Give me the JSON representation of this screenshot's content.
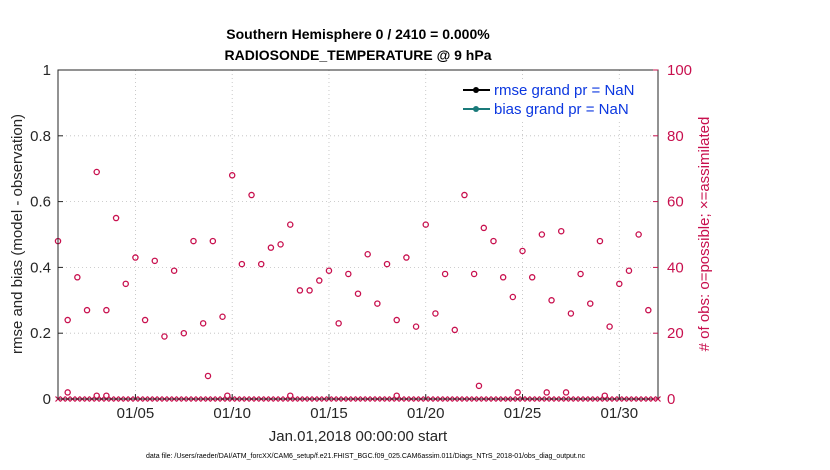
{
  "chart_data": {
    "type": "scatter",
    "title_line1": "Southern Hemisphere 0 / 2410 = 0.000%",
    "title_line2": "RADIOSONDE_TEMPERATURE @ 9 hPa",
    "ylabel_left": "rmse and bias (model - observation)",
    "ylabel_right": "# of obs: o=possible; ×=assimilated",
    "xlabel": "Jan.01,2018 00:00:00 start",
    "ylim_left": [
      0,
      1
    ],
    "ylim_right": [
      0,
      100
    ],
    "xlim": [
      1,
      32
    ],
    "left_ticks": [
      {
        "value": 0,
        "label": "0"
      },
      {
        "value": 0.2,
        "label": "0.2"
      },
      {
        "value": 0.4,
        "label": "0.4"
      },
      {
        "value": 0.6,
        "label": "0.6"
      },
      {
        "value": 0.8,
        "label": "0.8"
      },
      {
        "value": 1,
        "label": "1"
      }
    ],
    "right_ticks": [
      {
        "value": 0,
        "label": "0"
      },
      {
        "value": 20,
        "label": "20"
      },
      {
        "value": 40,
        "label": "40"
      },
      {
        "value": 60,
        "label": "60"
      },
      {
        "value": 80,
        "label": "80"
      },
      {
        "value": 100,
        "label": "100"
      }
    ],
    "x_ticks": [
      {
        "value": 5,
        "label": "01/05"
      },
      {
        "value": 10,
        "label": "01/10"
      },
      {
        "value": 15,
        "label": "01/15"
      },
      {
        "value": 20,
        "label": "01/20"
      },
      {
        "value": 25,
        "label": "01/25"
      },
      {
        "value": 30,
        "label": "01/30"
      }
    ],
    "legend": [
      {
        "name": "rmse grand pr = NaN",
        "color": "#000000"
      },
      {
        "name": "bias grand pr = NaN",
        "color": "#1a7a7a"
      }
    ],
    "possible_obs": {
      "x": [
        1.0,
        1.5,
        2.0,
        2.5,
        3.0,
        3.5,
        4.0,
        4.5,
        5.0,
        5.5,
        6.0,
        6.5,
        7.0,
        7.5,
        8.0,
        8.5,
        9.0,
        9.5,
        10.0,
        10.5,
        11.0,
        11.5,
        12.0,
        12.5,
        13.0,
        13.5,
        14.0,
        14.5,
        15.0,
        15.5,
        16.0,
        16.5,
        17.0,
        17.5,
        18.0,
        18.5,
        19.0,
        19.5,
        20.0,
        20.5,
        21.0,
        21.5,
        22.0,
        22.5,
        23.0,
        23.5,
        24.0,
        24.5,
        25.0,
        25.5,
        26.0,
        26.5,
        27.0,
        27.5,
        28.0,
        28.5,
        29.0,
        29.5,
        30.0,
        30.5,
        31.0,
        31.5,
        1.5,
        3.0,
        3.5,
        8.75,
        9.75,
        13.0,
        18.5,
        22.75,
        24.75,
        26.25,
        27.25,
        29.25
      ],
      "values": [
        48,
        24,
        37,
        27,
        69,
        27,
        55,
        35,
        43,
        24,
        42,
        19,
        39,
        20,
        48,
        23,
        48,
        25,
        68,
        41,
        62,
        41,
        46,
        47,
        53,
        33,
        33,
        36,
        39,
        23,
        38,
        32,
        44,
        29,
        41,
        24,
        43,
        22,
        53,
        26,
        38,
        21,
        62,
        38,
        52,
        48,
        37,
        31,
        45,
        37,
        50,
        30,
        51,
        26,
        38,
        29,
        48,
        22,
        35,
        39,
        50,
        27,
        2,
        1,
        1,
        7,
        1,
        1,
        1,
        4,
        2,
        2,
        2,
        1
      ]
    },
    "assimilated_obs": {
      "x_start": 1,
      "x_end": 32,
      "step": 0.25,
      "value": 0
    },
    "colors": {
      "obs": "#c8104e",
      "rmse": "#000000",
      "bias": "#1a7a7a"
    }
  },
  "footer": "data file: /Users/raeder/DAI/ATM_forcXX/CAM6_setup/f.e21.FHIST_BGC.f09_025.CAM6assim.011/Diags_NTrS_2018-01/obs_diag_output.nc"
}
